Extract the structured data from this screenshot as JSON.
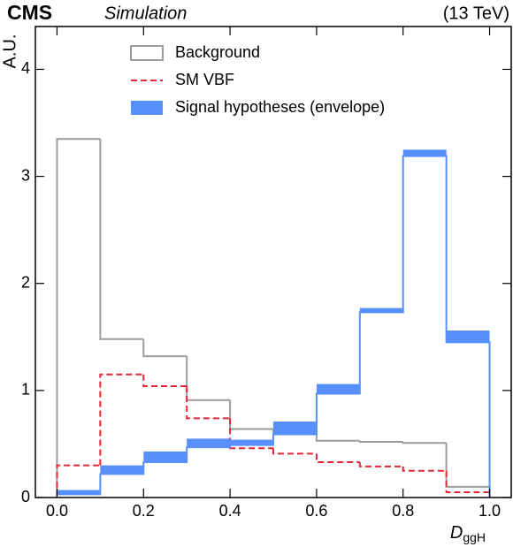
{
  "chart_data": {
    "type": "histogram",
    "experiment": "CMS",
    "status": "Simulation",
    "energy": "(13 TeV)",
    "y_label": "A.U.",
    "x_label": {
      "symbol": "D",
      "subscript": "ggH"
    },
    "bins": [
      0.0,
      0.1,
      0.2,
      0.3,
      0.4,
      0.5,
      0.6,
      0.7,
      0.8,
      0.9,
      1.0
    ],
    "series": [
      {
        "name": "Background",
        "color": "#9c9c9c",
        "style": "solid",
        "values": [
          3.35,
          1.48,
          1.32,
          0.91,
          0.64,
          0.6,
          0.53,
          0.52,
          0.51,
          0.1
        ]
      },
      {
        "name": "SM VBF",
        "color": "#e42536",
        "style": "dashed",
        "values": [
          0.3,
          1.15,
          1.04,
          0.74,
          0.46,
          0.41,
          0.33,
          0.29,
          0.25,
          0.05
        ]
      },
      {
        "name": "Signal hypotheses (envelope)",
        "color": "#5790fc",
        "style": "band",
        "low": [
          0.03,
          0.22,
          0.33,
          0.47,
          0.49,
          0.59,
          0.97,
          1.73,
          3.19,
          1.45
        ],
        "high": [
          0.07,
          0.3,
          0.43,
          0.55,
          0.54,
          0.71,
          1.06,
          1.77,
          3.25,
          1.56
        ]
      }
    ],
    "xlim": [
      -0.05,
      1.05
    ],
    "ylim": [
      0,
      4.4
    ],
    "xticks": [
      {
        "value": 0,
        "label": "0.0"
      },
      0.2,
      0.4,
      0.6,
      0.8,
      {
        "value": 1,
        "label": "1.0"
      }
    ],
    "yticks": [
      0,
      1,
      2,
      3,
      4
    ],
    "legend": "upper-center"
  }
}
